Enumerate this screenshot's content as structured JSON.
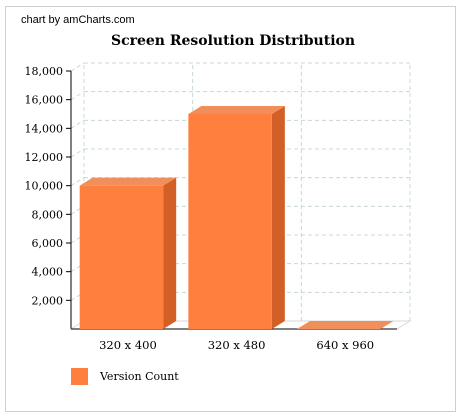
{
  "credit": "chart by amCharts.com",
  "chart_data": {
    "type": "bar",
    "title": "Screen Resolution Distribution",
    "categories": [
      "320 x 400",
      "320 x 480",
      "640 x 960"
    ],
    "series": [
      {
        "name": "Version Count",
        "values": [
          10000,
          15000,
          0
        ],
        "color": "#FF7F3F"
      }
    ],
    "ylim": [
      0,
      18000
    ],
    "yticks": [
      2000,
      4000,
      6000,
      8000,
      10000,
      12000,
      14000,
      16000,
      18000
    ],
    "ytick_labels": [
      "2,000",
      "4,000",
      "6,000",
      "8,000",
      "10,000",
      "12,000",
      "14,000",
      "16,000",
      "18,000"
    ],
    "grid": true,
    "three_d": true,
    "legend_position": "bottom-left"
  }
}
